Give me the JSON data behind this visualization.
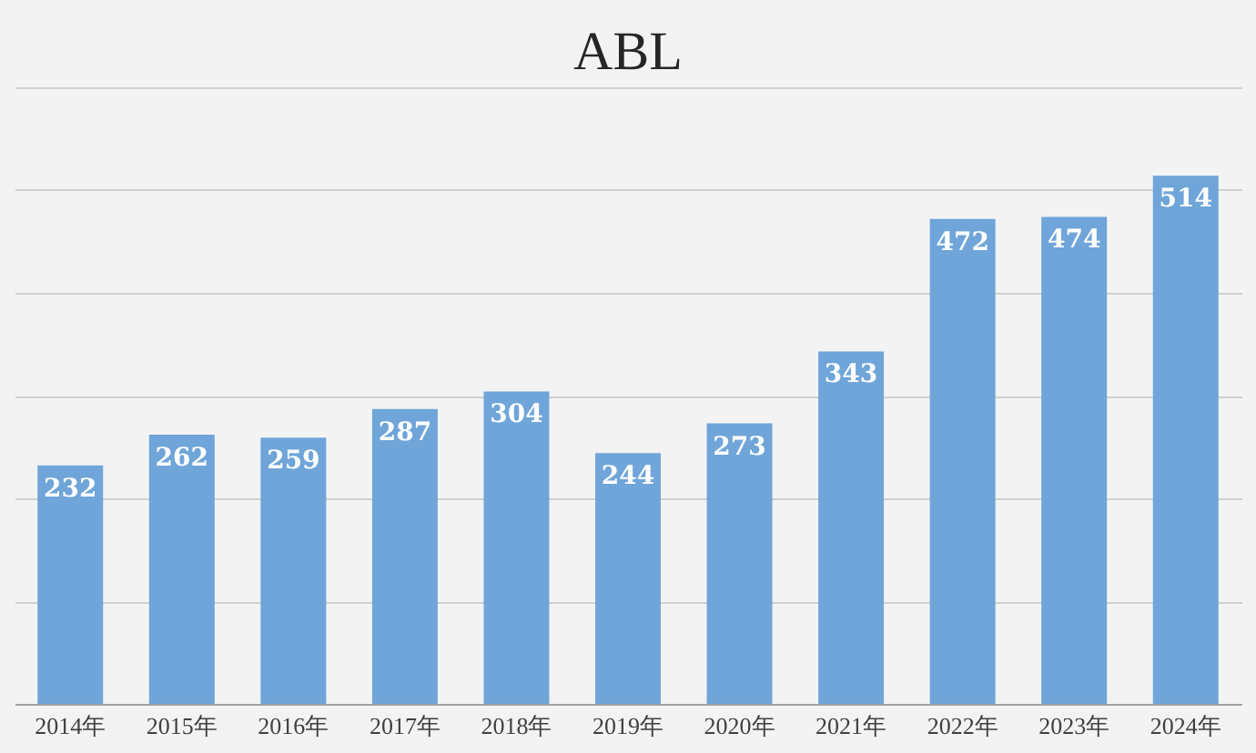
{
  "chart_data": {
    "type": "bar",
    "title": "ABL",
    "categories": [
      "2014年",
      "2015年",
      "2016年",
      "2017年",
      "2018年",
      "2019年",
      "2020年",
      "2021年",
      "2022年",
      "2023年",
      "2024年"
    ],
    "values": [
      232,
      262,
      259,
      287,
      304,
      244,
      273,
      343,
      472,
      474,
      514
    ],
    "color": "#6fa5d9",
    "data_labels": true,
    "ylim": [
      0,
      600
    ],
    "yticks": [
      {
        "value": 0,
        "label": null
      },
      {
        "value": 100,
        "label": null
      },
      {
        "value": 200,
        "label": null
      },
      {
        "value": 300,
        "label": null
      },
      {
        "value": 400,
        "label": null
      },
      {
        "value": 500,
        "label": null
      },
      {
        "value": 600,
        "label": null
      }
    ],
    "grid": "y",
    "tick_labels": "x"
  }
}
